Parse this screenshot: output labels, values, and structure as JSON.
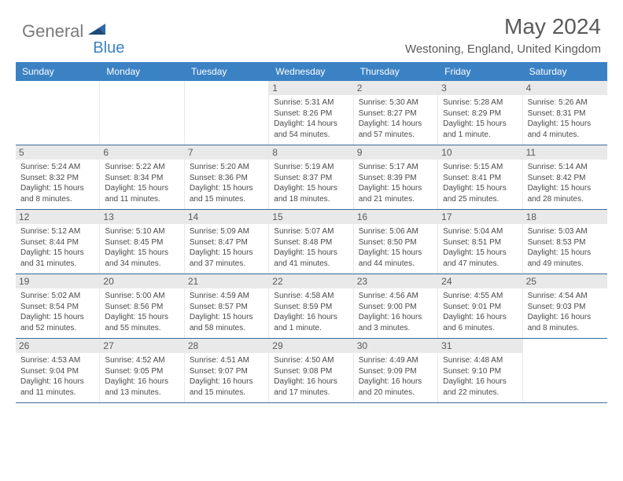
{
  "logo": {
    "part1": "General",
    "part2": "Blue"
  },
  "title": "May 2024",
  "location": "Westoning, England, United Kingdom",
  "dayNames": [
    "Sunday",
    "Monday",
    "Tuesday",
    "Wednesday",
    "Thursday",
    "Friday",
    "Saturday"
  ],
  "colors": {
    "headerBg": "#3b82c4",
    "headerText": "#ffffff",
    "dayNumBg": "#e9e9e9",
    "text": "#5a5a5a",
    "rule": "#3b6a9a"
  },
  "weeks": [
    [
      {
        "n": "",
        "empty": true
      },
      {
        "n": "",
        "empty": true
      },
      {
        "n": "",
        "empty": true
      },
      {
        "n": "1",
        "sunrise": "5:31 AM",
        "sunset": "8:26 PM",
        "daylight": "14 hours and 54 minutes."
      },
      {
        "n": "2",
        "sunrise": "5:30 AM",
        "sunset": "8:27 PM",
        "daylight": "14 hours and 57 minutes."
      },
      {
        "n": "3",
        "sunrise": "5:28 AM",
        "sunset": "8:29 PM",
        "daylight": "15 hours and 1 minute."
      },
      {
        "n": "4",
        "sunrise": "5:26 AM",
        "sunset": "8:31 PM",
        "daylight": "15 hours and 4 minutes."
      }
    ],
    [
      {
        "n": "5",
        "sunrise": "5:24 AM",
        "sunset": "8:32 PM",
        "daylight": "15 hours and 8 minutes."
      },
      {
        "n": "6",
        "sunrise": "5:22 AM",
        "sunset": "8:34 PM",
        "daylight": "15 hours and 11 minutes."
      },
      {
        "n": "7",
        "sunrise": "5:20 AM",
        "sunset": "8:36 PM",
        "daylight": "15 hours and 15 minutes."
      },
      {
        "n": "8",
        "sunrise": "5:19 AM",
        "sunset": "8:37 PM",
        "daylight": "15 hours and 18 minutes."
      },
      {
        "n": "9",
        "sunrise": "5:17 AM",
        "sunset": "8:39 PM",
        "daylight": "15 hours and 21 minutes."
      },
      {
        "n": "10",
        "sunrise": "5:15 AM",
        "sunset": "8:41 PM",
        "daylight": "15 hours and 25 minutes."
      },
      {
        "n": "11",
        "sunrise": "5:14 AM",
        "sunset": "8:42 PM",
        "daylight": "15 hours and 28 minutes."
      }
    ],
    [
      {
        "n": "12",
        "sunrise": "5:12 AM",
        "sunset": "8:44 PM",
        "daylight": "15 hours and 31 minutes."
      },
      {
        "n": "13",
        "sunrise": "5:10 AM",
        "sunset": "8:45 PM",
        "daylight": "15 hours and 34 minutes."
      },
      {
        "n": "14",
        "sunrise": "5:09 AM",
        "sunset": "8:47 PM",
        "daylight": "15 hours and 37 minutes."
      },
      {
        "n": "15",
        "sunrise": "5:07 AM",
        "sunset": "8:48 PM",
        "daylight": "15 hours and 41 minutes."
      },
      {
        "n": "16",
        "sunrise": "5:06 AM",
        "sunset": "8:50 PM",
        "daylight": "15 hours and 44 minutes."
      },
      {
        "n": "17",
        "sunrise": "5:04 AM",
        "sunset": "8:51 PM",
        "daylight": "15 hours and 47 minutes."
      },
      {
        "n": "18",
        "sunrise": "5:03 AM",
        "sunset": "8:53 PM",
        "daylight": "15 hours and 49 minutes."
      }
    ],
    [
      {
        "n": "19",
        "sunrise": "5:02 AM",
        "sunset": "8:54 PM",
        "daylight": "15 hours and 52 minutes."
      },
      {
        "n": "20",
        "sunrise": "5:00 AM",
        "sunset": "8:56 PM",
        "daylight": "15 hours and 55 minutes."
      },
      {
        "n": "21",
        "sunrise": "4:59 AM",
        "sunset": "8:57 PM",
        "daylight": "15 hours and 58 minutes."
      },
      {
        "n": "22",
        "sunrise": "4:58 AM",
        "sunset": "8:59 PM",
        "daylight": "16 hours and 1 minute."
      },
      {
        "n": "23",
        "sunrise": "4:56 AM",
        "sunset": "9:00 PM",
        "daylight": "16 hours and 3 minutes."
      },
      {
        "n": "24",
        "sunrise": "4:55 AM",
        "sunset": "9:01 PM",
        "daylight": "16 hours and 6 minutes."
      },
      {
        "n": "25",
        "sunrise": "4:54 AM",
        "sunset": "9:03 PM",
        "daylight": "16 hours and 8 minutes."
      }
    ],
    [
      {
        "n": "26",
        "sunrise": "4:53 AM",
        "sunset": "9:04 PM",
        "daylight": "16 hours and 11 minutes."
      },
      {
        "n": "27",
        "sunrise": "4:52 AM",
        "sunset": "9:05 PM",
        "daylight": "16 hours and 13 minutes."
      },
      {
        "n": "28",
        "sunrise": "4:51 AM",
        "sunset": "9:07 PM",
        "daylight": "16 hours and 15 minutes."
      },
      {
        "n": "29",
        "sunrise": "4:50 AM",
        "sunset": "9:08 PM",
        "daylight": "16 hours and 17 minutes."
      },
      {
        "n": "30",
        "sunrise": "4:49 AM",
        "sunset": "9:09 PM",
        "daylight": "16 hours and 20 minutes."
      },
      {
        "n": "31",
        "sunrise": "4:48 AM",
        "sunset": "9:10 PM",
        "daylight": "16 hours and 22 minutes."
      },
      {
        "n": "",
        "empty": true
      }
    ]
  ]
}
